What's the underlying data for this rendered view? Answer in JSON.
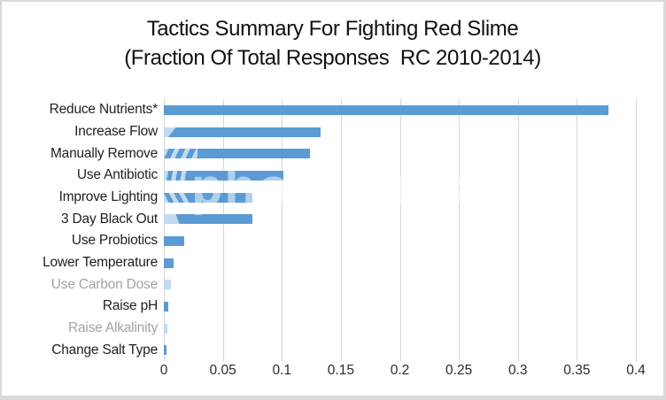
{
  "chart_data": {
    "type": "bar",
    "orientation": "horizontal",
    "title": "Tactics Summary For Fighting Red Slime",
    "subtitle": "(Fraction Of Total Responses  RC 2010-2014)",
    "categories": [
      "Reduce Nutrients*",
      "Increase Flow",
      "Manually Remove",
      "Use Antibiotic",
      "Improve Lighting",
      "3 Day Black Out",
      "Use Probiotics",
      "Lower Temperature",
      "Use Carbon Dose",
      "Raise pH",
      "Raise Alkalinity",
      "Change Salt Type"
    ],
    "values": [
      0.377,
      0.133,
      0.124,
      0.101,
      0.075,
      0.075,
      0.017,
      0.008,
      0.006,
      0.004,
      0.003,
      0.002
    ],
    "series": [
      {
        "name": "Fraction of total responses",
        "values": [
          0.377,
          0.133,
          0.124,
          0.101,
          0.075,
          0.075,
          0.017,
          0.008,
          0.006,
          0.004,
          0.003,
          0.002
        ]
      }
    ],
    "xlim": [
      0,
      0.4
    ],
    "xtick_labels": [
      "0",
      "0.05",
      "0.1",
      "0.15",
      "0.2",
      "0.25",
      "0.3",
      "0.35",
      "0.4"
    ],
    "grid": "vertical",
    "legend_position": "none",
    "bar_color": "#5B9BD5",
    "watermark_tint_color": "#C3DAEF",
    "gridline_color": "#D6D6D6",
    "grayed_out_labels": [
      "Use Carbon Dose",
      "Raise Alkalinity"
    ],
    "bars": [
      {
        "label": "Reduce Nutrients*",
        "value": 0.377,
        "overlay": "none",
        "gray": false
      },
      {
        "label": "Increase Flow",
        "value": 0.133,
        "overlay": "round",
        "gray": false
      },
      {
        "label": "Manually Remove",
        "value": 0.124,
        "overlay": "stripes-a",
        "gray": false
      },
      {
        "label": "Use Antibiotic",
        "value": 0.101,
        "overlay": "stripes-b",
        "gray": false
      },
      {
        "label": "Improve Lighting",
        "value": 0.075,
        "overlay": "stripes-c",
        "gray": false
      },
      {
        "label": "3 Day Black Out",
        "value": 0.075,
        "overlay": "solid",
        "gray": false
      },
      {
        "label": "Use Probiotics",
        "value": 0.017,
        "overlay": "none",
        "gray": false
      },
      {
        "label": "Lower Temperature",
        "value": 0.008,
        "overlay": "none",
        "gray": false
      },
      {
        "label": "Use Carbon Dose",
        "value": 0.006,
        "overlay": "light-full",
        "gray": true
      },
      {
        "label": "Raise pH",
        "value": 0.004,
        "overlay": "none",
        "gray": false
      },
      {
        "label": "Raise Alkalinity",
        "value": 0.003,
        "overlay": "light-full",
        "gray": true
      },
      {
        "label": "Change Salt Type",
        "value": 0.002,
        "overlay": "none",
        "gray": false
      }
    ]
  },
  "watermark": {
    "text": "photobucket"
  }
}
